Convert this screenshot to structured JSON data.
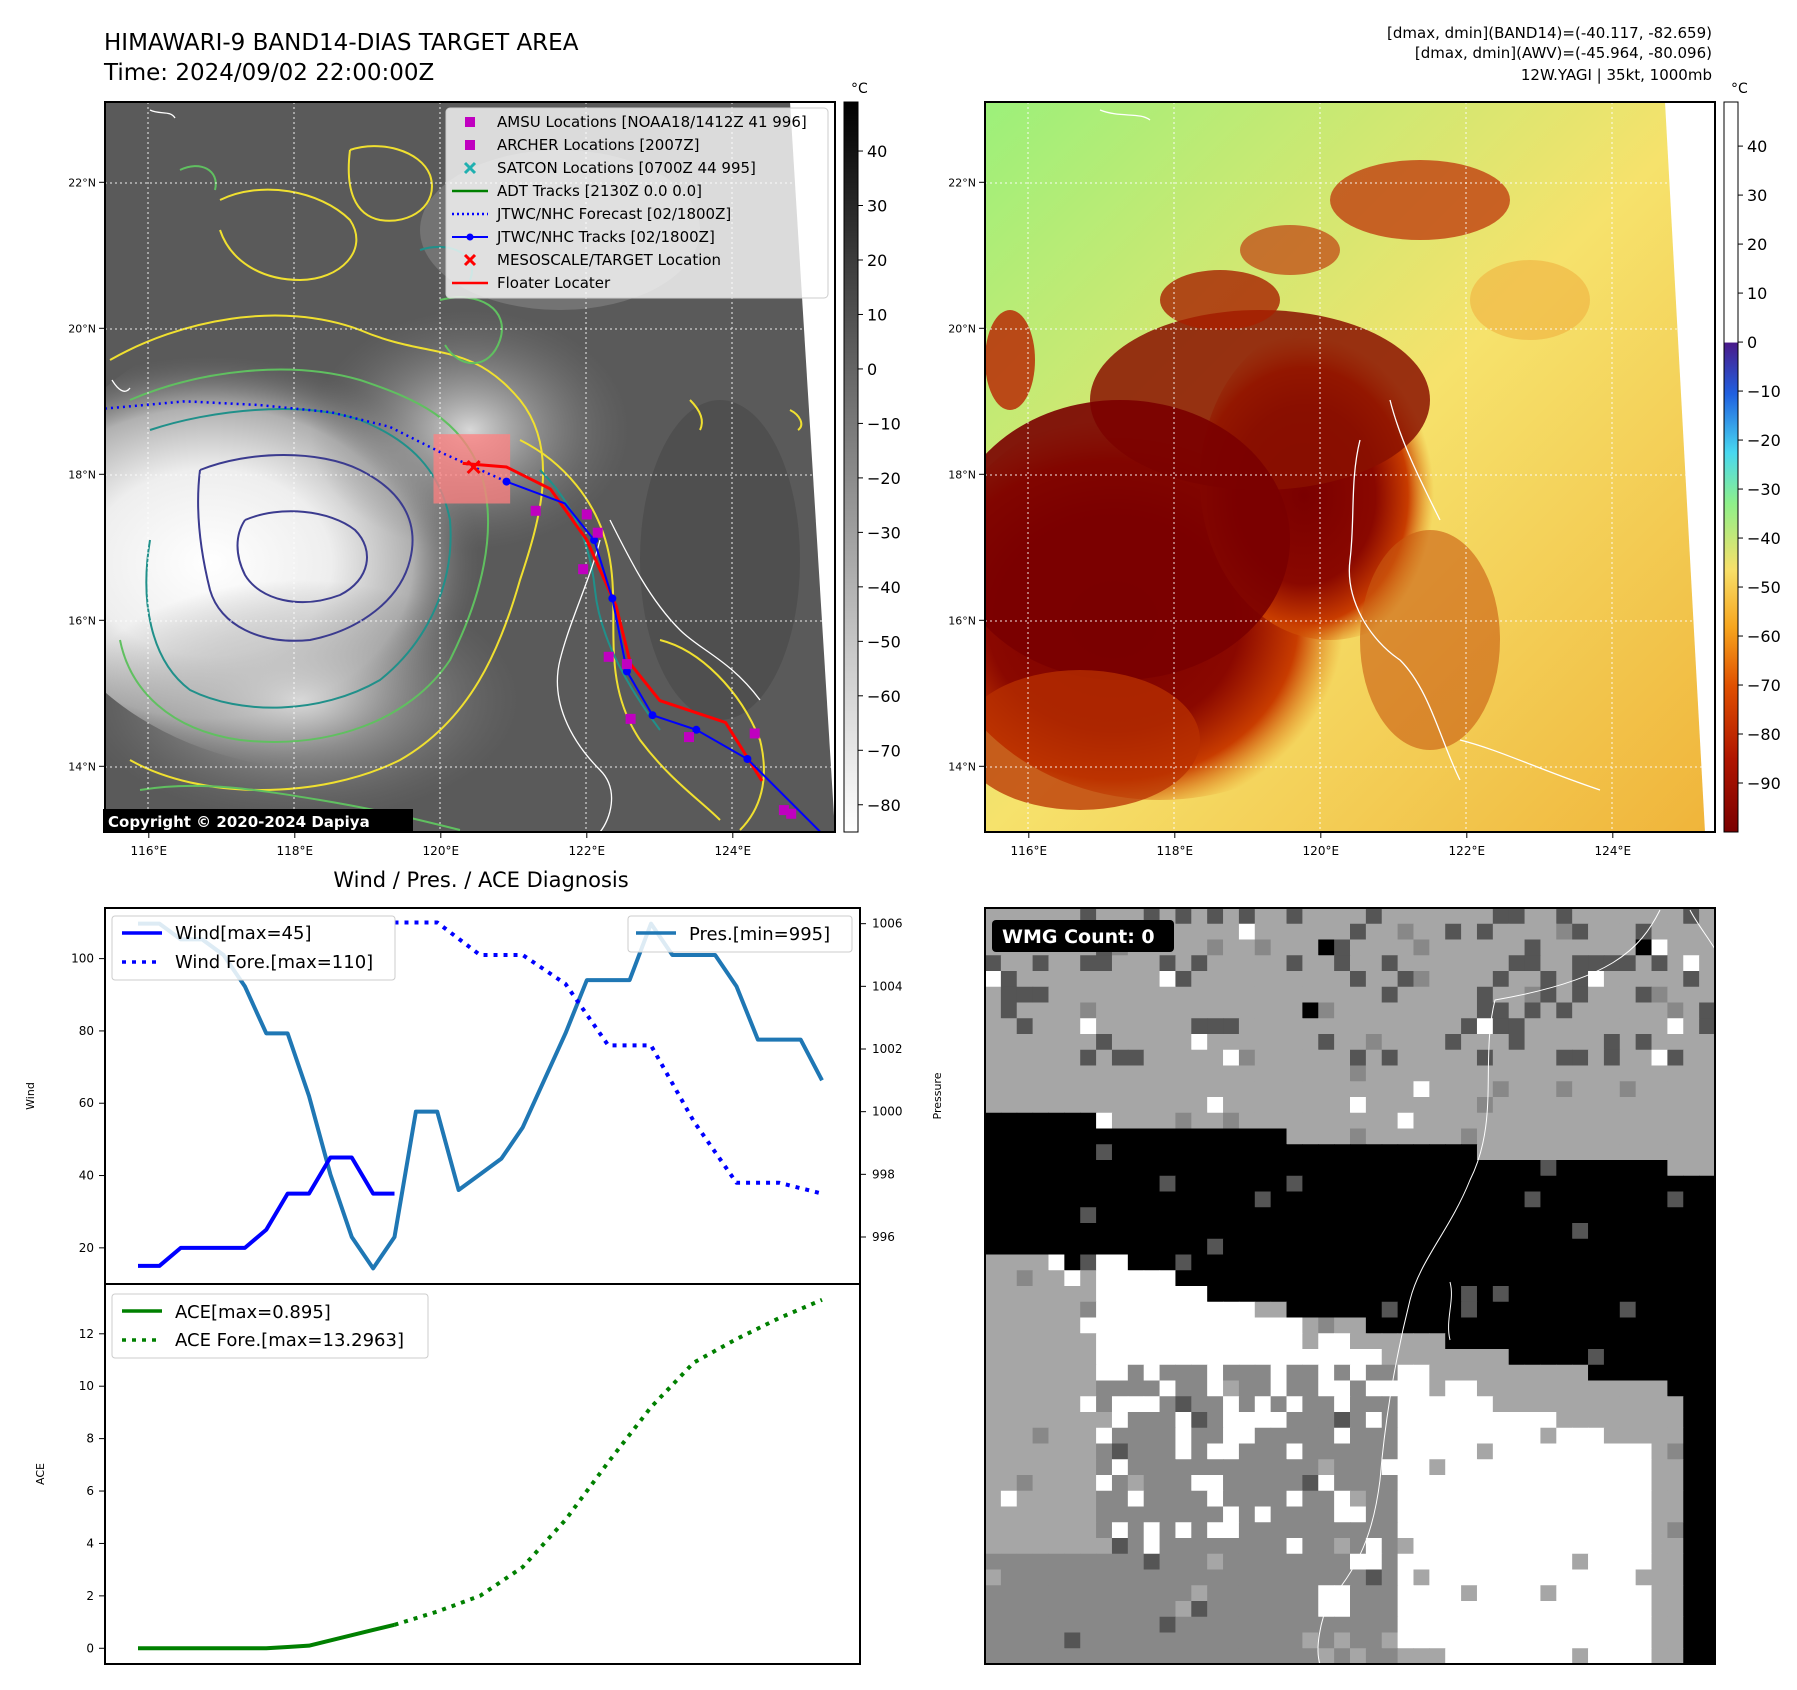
{
  "header": {
    "title": "HIMAWARI-9 BAND14-DIAS TARGET AREA",
    "time": "Time: 2024/09/02 22:00:00Z",
    "stats_line1": "[dmax, dmin](BAND14)=(-40.117, -82.659)",
    "stats_line2": "[dmax, dmin](AWV)=(-45.964, -80.096)",
    "storm_line": "12W.YAGI | 35kt, 1000mb",
    "copyright": "Copyright © 2020-2024 Dapiya"
  },
  "colors": {
    "amsu": "#c000c0",
    "archer": "#c000c0",
    "satcon": "#20b0b0",
    "adt": "#008000",
    "jtwc_forecast": "#0000ff",
    "jtwc_track": "#0000ff",
    "target": "#ff0000",
    "floater": "#ff0000",
    "wind": "#0000ff",
    "pressure": "#1f77b4",
    "ace": "#008000",
    "coast": "#ffffff",
    "contour_yellow": "#f0e030",
    "contour_green": "#60c060",
    "contour_teal": "#20908a",
    "contour_purple": "#3b3b8f"
  },
  "map_axes": {
    "lon_ticks": [
      "116°E",
      "118°E",
      "120°E",
      "122°E",
      "124°E"
    ],
    "lat_ticks": [
      "22°N",
      "20°N",
      "18°N",
      "16°N",
      "14°N"
    ],
    "lon_values": [
      116,
      118,
      120,
      122,
      124
    ],
    "lat_values": [
      22,
      20,
      18,
      16,
      14
    ],
    "lon_range": [
      115.4,
      125.4
    ],
    "lat_range": [
      13.1,
      23.1
    ]
  },
  "legend": [
    {
      "label": "AMSU Locations [NOAA18/1412Z 41 996]",
      "marker": "square",
      "color": "#c000c0"
    },
    {
      "label": "ARCHER Locations [2007Z]",
      "marker": "square",
      "color": "#c000c0"
    },
    {
      "label": "SATCON Locations [0700Z 44 995]",
      "marker": "x",
      "color": "#20b0b0"
    },
    {
      "label": "ADT Tracks [2130Z 0.0 0.0]",
      "marker": "line",
      "color": "#008000"
    },
    {
      "label": "JTWC/NHC Forecast [02/1800Z]",
      "marker": "dotted",
      "color": "#0000ff"
    },
    {
      "label": "JTWC/NHC Tracks [02/1800Z]",
      "marker": "dotline",
      "color": "#0000ff"
    },
    {
      "label": "MESOSCALE/TARGET Location",
      "marker": "x",
      "color": "#ff0000"
    },
    {
      "label": "Floater Locater",
      "marker": "line",
      "color": "#ff0000"
    }
  ],
  "colorbar_gray": {
    "unit": "°C",
    "ticks": [
      "40",
      "30",
      "20",
      "10",
      "0",
      "−10",
      "−20",
      "−30",
      "−40",
      "−50",
      "−60",
      "−70",
      "−80"
    ],
    "values": [
      40,
      30,
      20,
      10,
      0,
      -10,
      -20,
      -30,
      -40,
      -50,
      -60,
      -70,
      -80
    ],
    "range": [
      -85,
      49
    ]
  },
  "colorbar_color": {
    "unit": "°C",
    "ticks": [
      "40",
      "30",
      "20",
      "10",
      "0",
      "−10",
      "−20",
      "−30",
      "−40",
      "−50",
      "−60",
      "−70",
      "−80",
      "−90"
    ],
    "values": [
      40,
      30,
      20,
      10,
      0,
      -10,
      -20,
      -30,
      -40,
      -50,
      -60,
      -70,
      -80,
      -90
    ],
    "range": [
      -100,
      49
    ]
  },
  "tracks": {
    "jtwc_track": [
      [
        125.2,
        13.1
      ],
      [
        124.2,
        14.1
      ],
      [
        123.5,
        14.5
      ],
      [
        122.9,
        14.7
      ],
      [
        122.55,
        15.3
      ],
      [
        122.35,
        16.3
      ],
      [
        122.1,
        17.1
      ],
      [
        121.7,
        17.6
      ],
      [
        120.9,
        17.9
      ]
    ],
    "jtwc_track_points": [
      [
        124.2,
        14.1
      ],
      [
        123.5,
        14.5
      ],
      [
        122.9,
        14.7
      ],
      [
        122.55,
        15.3
      ],
      [
        122.35,
        16.3
      ],
      [
        122.1,
        17.1
      ],
      [
        120.9,
        17.9
      ]
    ],
    "jtwc_forecast": [
      [
        115.4,
        18.9
      ],
      [
        116.5,
        19.0
      ],
      [
        117.5,
        18.95
      ],
      [
        118.5,
        18.85
      ],
      [
        119.3,
        18.65
      ],
      [
        120.0,
        18.3
      ],
      [
        120.9,
        17.9
      ]
    ],
    "floater": [
      [
        124.4,
        13.8
      ],
      [
        123.9,
        14.6
      ],
      [
        123.0,
        14.9
      ],
      [
        122.6,
        15.4
      ],
      [
        122.4,
        16.2
      ],
      [
        122.0,
        17.1
      ],
      [
        121.5,
        17.8
      ],
      [
        120.9,
        18.1
      ],
      [
        120.3,
        18.15
      ]
    ],
    "amsu": [
      [
        121.3,
        17.5
      ],
      [
        122.0,
        17.45
      ],
      [
        122.15,
        17.2
      ],
      [
        121.95,
        16.7
      ],
      [
        122.3,
        15.5
      ],
      [
        122.55,
        15.4
      ],
      [
        122.6,
        14.65
      ],
      [
        123.4,
        14.4
      ],
      [
        124.3,
        14.45
      ],
      [
        124.7,
        13.4
      ],
      [
        124.8,
        13.35
      ]
    ],
    "target": [
      [
        120.45,
        18.1
      ]
    ],
    "target_box": [
      [
        119.9,
        18.55
      ],
      [
        120.95,
        17.6
      ]
    ]
  },
  "panel3": {
    "title": "Wind / Pres. / ACE Diagnosis",
    "left_ylabel": "Wind",
    "right_ylabel": "Pressure",
    "left_ticks": [
      "20",
      "40",
      "60",
      "80",
      "100"
    ],
    "left_values": [
      20,
      40,
      60,
      80,
      100
    ],
    "right_ticks": [
      "996",
      "998",
      "1000",
      "1002",
      "1004",
      "1006"
    ],
    "right_values": [
      996,
      998,
      1000,
      1002,
      1004,
      1006
    ],
    "ylim_wind": [
      10,
      114
    ],
    "ylim_pres": [
      994.5,
      1006.5
    ],
    "legend_wind": "Wind[max=45]",
    "legend_wind_fore": "Wind Fore.[max=110]",
    "legend_pres": "Pres.[min=995]"
  },
  "panel4": {
    "ylabel": "ACE",
    "ticks": [
      "0",
      "2",
      "4",
      "6",
      "8",
      "10",
      "12"
    ],
    "values": [
      0,
      2,
      4,
      6,
      8,
      10,
      12
    ],
    "ylim": [
      -0.6,
      13.9
    ],
    "legend_ace": "ACE[max=0.895]",
    "legend_ace_fore": "ACE Fore.[max=13.2963]"
  },
  "panel5": {
    "label": "WMG Count: 0"
  },
  "chart_data": [
    {
      "type": "line",
      "title": "Wind / Pres. / ACE Diagnosis",
      "xlabel": "",
      "ylabel": "Wind",
      "x": [
        0,
        1,
        2,
        3,
        4,
        5,
        6,
        7,
        8,
        9,
        10,
        11,
        12,
        13,
        14,
        15,
        16,
        17,
        18,
        19,
        20,
        21,
        22,
        23,
        24,
        25,
        26,
        27,
        28,
        29,
        30,
        31,
        32
      ],
      "series": [
        {
          "name": "Wind[max=45]",
          "x": [
            0,
            1,
            2,
            3,
            4,
            5,
            6,
            7,
            8,
            9,
            10,
            11,
            12
          ],
          "values": [
            15,
            15,
            20,
            20,
            20,
            20,
            25,
            35,
            35,
            45,
            45,
            35,
            35
          ]
        },
        {
          "name": "Wind Fore.[max=110]",
          "x": [
            12,
            14,
            16,
            18,
            20,
            22,
            24,
            26,
            28,
            30,
            32
          ],
          "values": [
            110,
            110,
            101,
            101,
            93,
            76,
            76,
            55,
            38,
            38,
            35
          ]
        }
      ]
    },
    {
      "type": "line",
      "xlabel": "",
      "ylabel": "Pressure",
      "series": [
        {
          "name": "Pres.[min=995]",
          "x": [
            0,
            1,
            2,
            3,
            4,
            5,
            6,
            7,
            8,
            9,
            10,
            11,
            12,
            13,
            14,
            15,
            16,
            17,
            18,
            19,
            20,
            21,
            22,
            23,
            24,
            25,
            26,
            27,
            28,
            29,
            30,
            31,
            32
          ],
          "values": [
            1006,
            1006,
            1005.5,
            1005.5,
            1005,
            1004,
            1002.5,
            1002.5,
            1000.5,
            998,
            996,
            995,
            996,
            1000,
            1000,
            997.5,
            998,
            998.5,
            999.5,
            1001,
            1002.5,
            1004.2,
            1004.2,
            1004.2,
            1006,
            1005,
            1005,
            1005,
            1004,
            1002.3,
            1002.3,
            1002.3,
            1001
          ]
        }
      ]
    },
    {
      "type": "line",
      "ylabel": "ACE",
      "series": [
        {
          "name": "ACE[max=0.895]",
          "x": [
            0,
            1,
            2,
            3,
            4,
            5,
            6,
            7,
            8,
            9,
            10,
            11,
            12
          ],
          "values": [
            0,
            0,
            0,
            0,
            0,
            0,
            0,
            0.05,
            0.1,
            0.3,
            0.5,
            0.7,
            0.895
          ]
        },
        {
          "name": "ACE Fore.[max=13.2963]",
          "x": [
            12,
            14,
            16,
            18,
            20,
            22,
            24,
            26,
            28,
            30,
            32
          ],
          "values": [
            0.895,
            1.4,
            2.0,
            3.1,
            4.9,
            7.1,
            9.2,
            10.9,
            11.8,
            12.6,
            13.2963
          ]
        }
      ]
    }
  ]
}
